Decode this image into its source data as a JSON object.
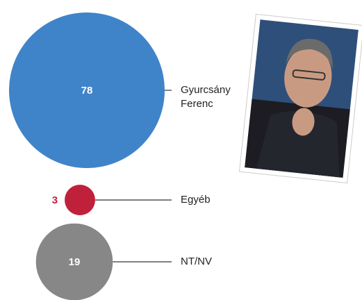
{
  "chart_data": {
    "type": "bubble",
    "categories": [
      "Gyurcsány Ferenc",
      "Egyéb",
      "NT/NV"
    ],
    "values": [
      78,
      3,
      19
    ],
    "colors": [
      "#3f84c9",
      "#c0213a",
      "#878787"
    ]
  }
}
